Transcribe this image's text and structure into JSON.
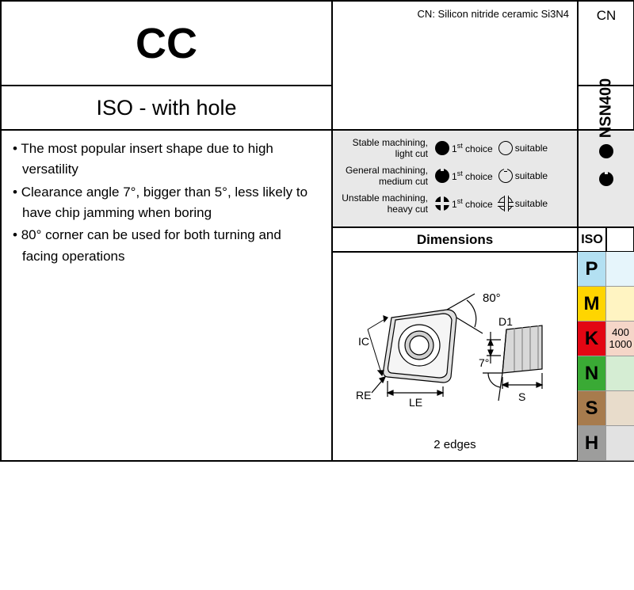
{
  "header": {
    "title": "CC",
    "subtitle": "ISO - with hole",
    "material_note": "CN: Silicon nitride ceramic Si3N4",
    "code": "CN",
    "grade": "NSN400"
  },
  "bullets": [
    "The most popular insert shape due to high versatility",
    "Clearance angle 7°, bigger than 5°, less likely to have chip jamming when boring",
    "80° corner can be used for both turning and facing operations"
  ],
  "legend": {
    "rows": [
      {
        "label_line1": "Stable machining,",
        "label_line2": "light cut",
        "choice": "1",
        "choice_suffix": "choice",
        "suitable": "suitable"
      },
      {
        "label_line1": "General machining,",
        "label_line2": "medium cut",
        "choice": "1",
        "choice_suffix": "choice",
        "suitable": "suitable"
      },
      {
        "label_line1": "Unstable machining,",
        "label_line2": "heavy cut",
        "choice": "1",
        "choice_suffix": "choice",
        "suitable": "suitable"
      }
    ]
  },
  "dimensions": {
    "header": "Dimensions",
    "iso_header": "ISO",
    "angle_top": "80°",
    "angle_side": "7°",
    "labels": {
      "IC": "IC",
      "RE": "RE",
      "LE": "LE",
      "D1": "D1",
      "S": "S"
    },
    "edges": "2 edges"
  },
  "iso_categories": [
    {
      "code": "P",
      "bg": "#b3e0f2",
      "light": "#e6f5fb",
      "values": []
    },
    {
      "code": "M",
      "bg": "#ffd500",
      "light": "#fff4c2",
      "values": []
    },
    {
      "code": "K",
      "bg": "#e30613",
      "light": "#f5d6c8",
      "values": [
        "400",
        "1000"
      ]
    },
    {
      "code": "N",
      "bg": "#3aaa35",
      "light": "#d5edd3",
      "values": []
    },
    {
      "code": "S",
      "bg": "#a77b4d",
      "light": "#e8dccb",
      "values": []
    },
    {
      "code": "H",
      "bg": "#9d9d9c",
      "light": "#e2e2e2",
      "values": []
    }
  ]
}
